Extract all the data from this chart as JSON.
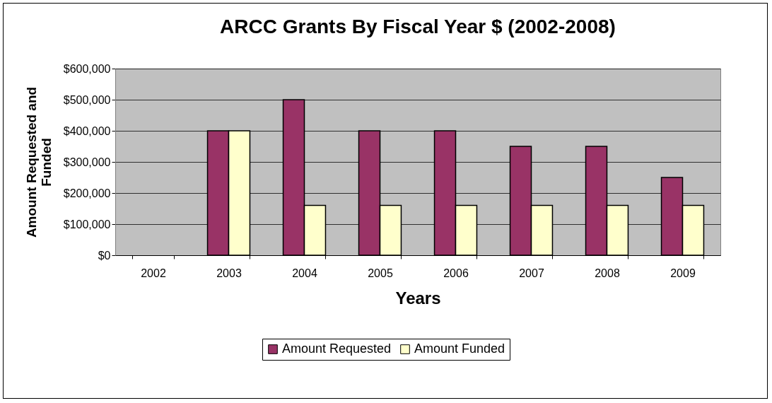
{
  "chart_data": {
    "type": "bar",
    "title": "ARCC Grants By Fiscal Year $ (2002-2008)",
    "xlabel": "Years",
    "ylabel": "Amount Requested and Funded",
    "categories": [
      "2002",
      "2003",
      "2004",
      "2005",
      "2006",
      "2007",
      "2008",
      "2009"
    ],
    "series": [
      {
        "name": "Amount Requested",
        "color": "#993366",
        "values": [
          null,
          400000,
          500000,
          400000,
          400000,
          350000,
          350000,
          250000
        ]
      },
      {
        "name": "Amount Funded",
        "color": "#ffffcc",
        "values": [
          null,
          400000,
          160000,
          160000,
          160000,
          160000,
          160000,
          160000
        ]
      }
    ],
    "ylim": [
      0,
      600000
    ],
    "yticks": [
      {
        "value": 0,
        "label": "$0"
      },
      {
        "value": 100000,
        "label": "$100,000"
      },
      {
        "value": 200000,
        "label": "$200,000"
      },
      {
        "value": 300000,
        "label": "$300,000"
      },
      {
        "value": 400000,
        "label": "$400,000"
      },
      {
        "value": 500000,
        "label": "$500,000"
      },
      {
        "value": 600000,
        "label": "$600,000"
      }
    ],
    "grid": "y",
    "legend": "bottom"
  }
}
